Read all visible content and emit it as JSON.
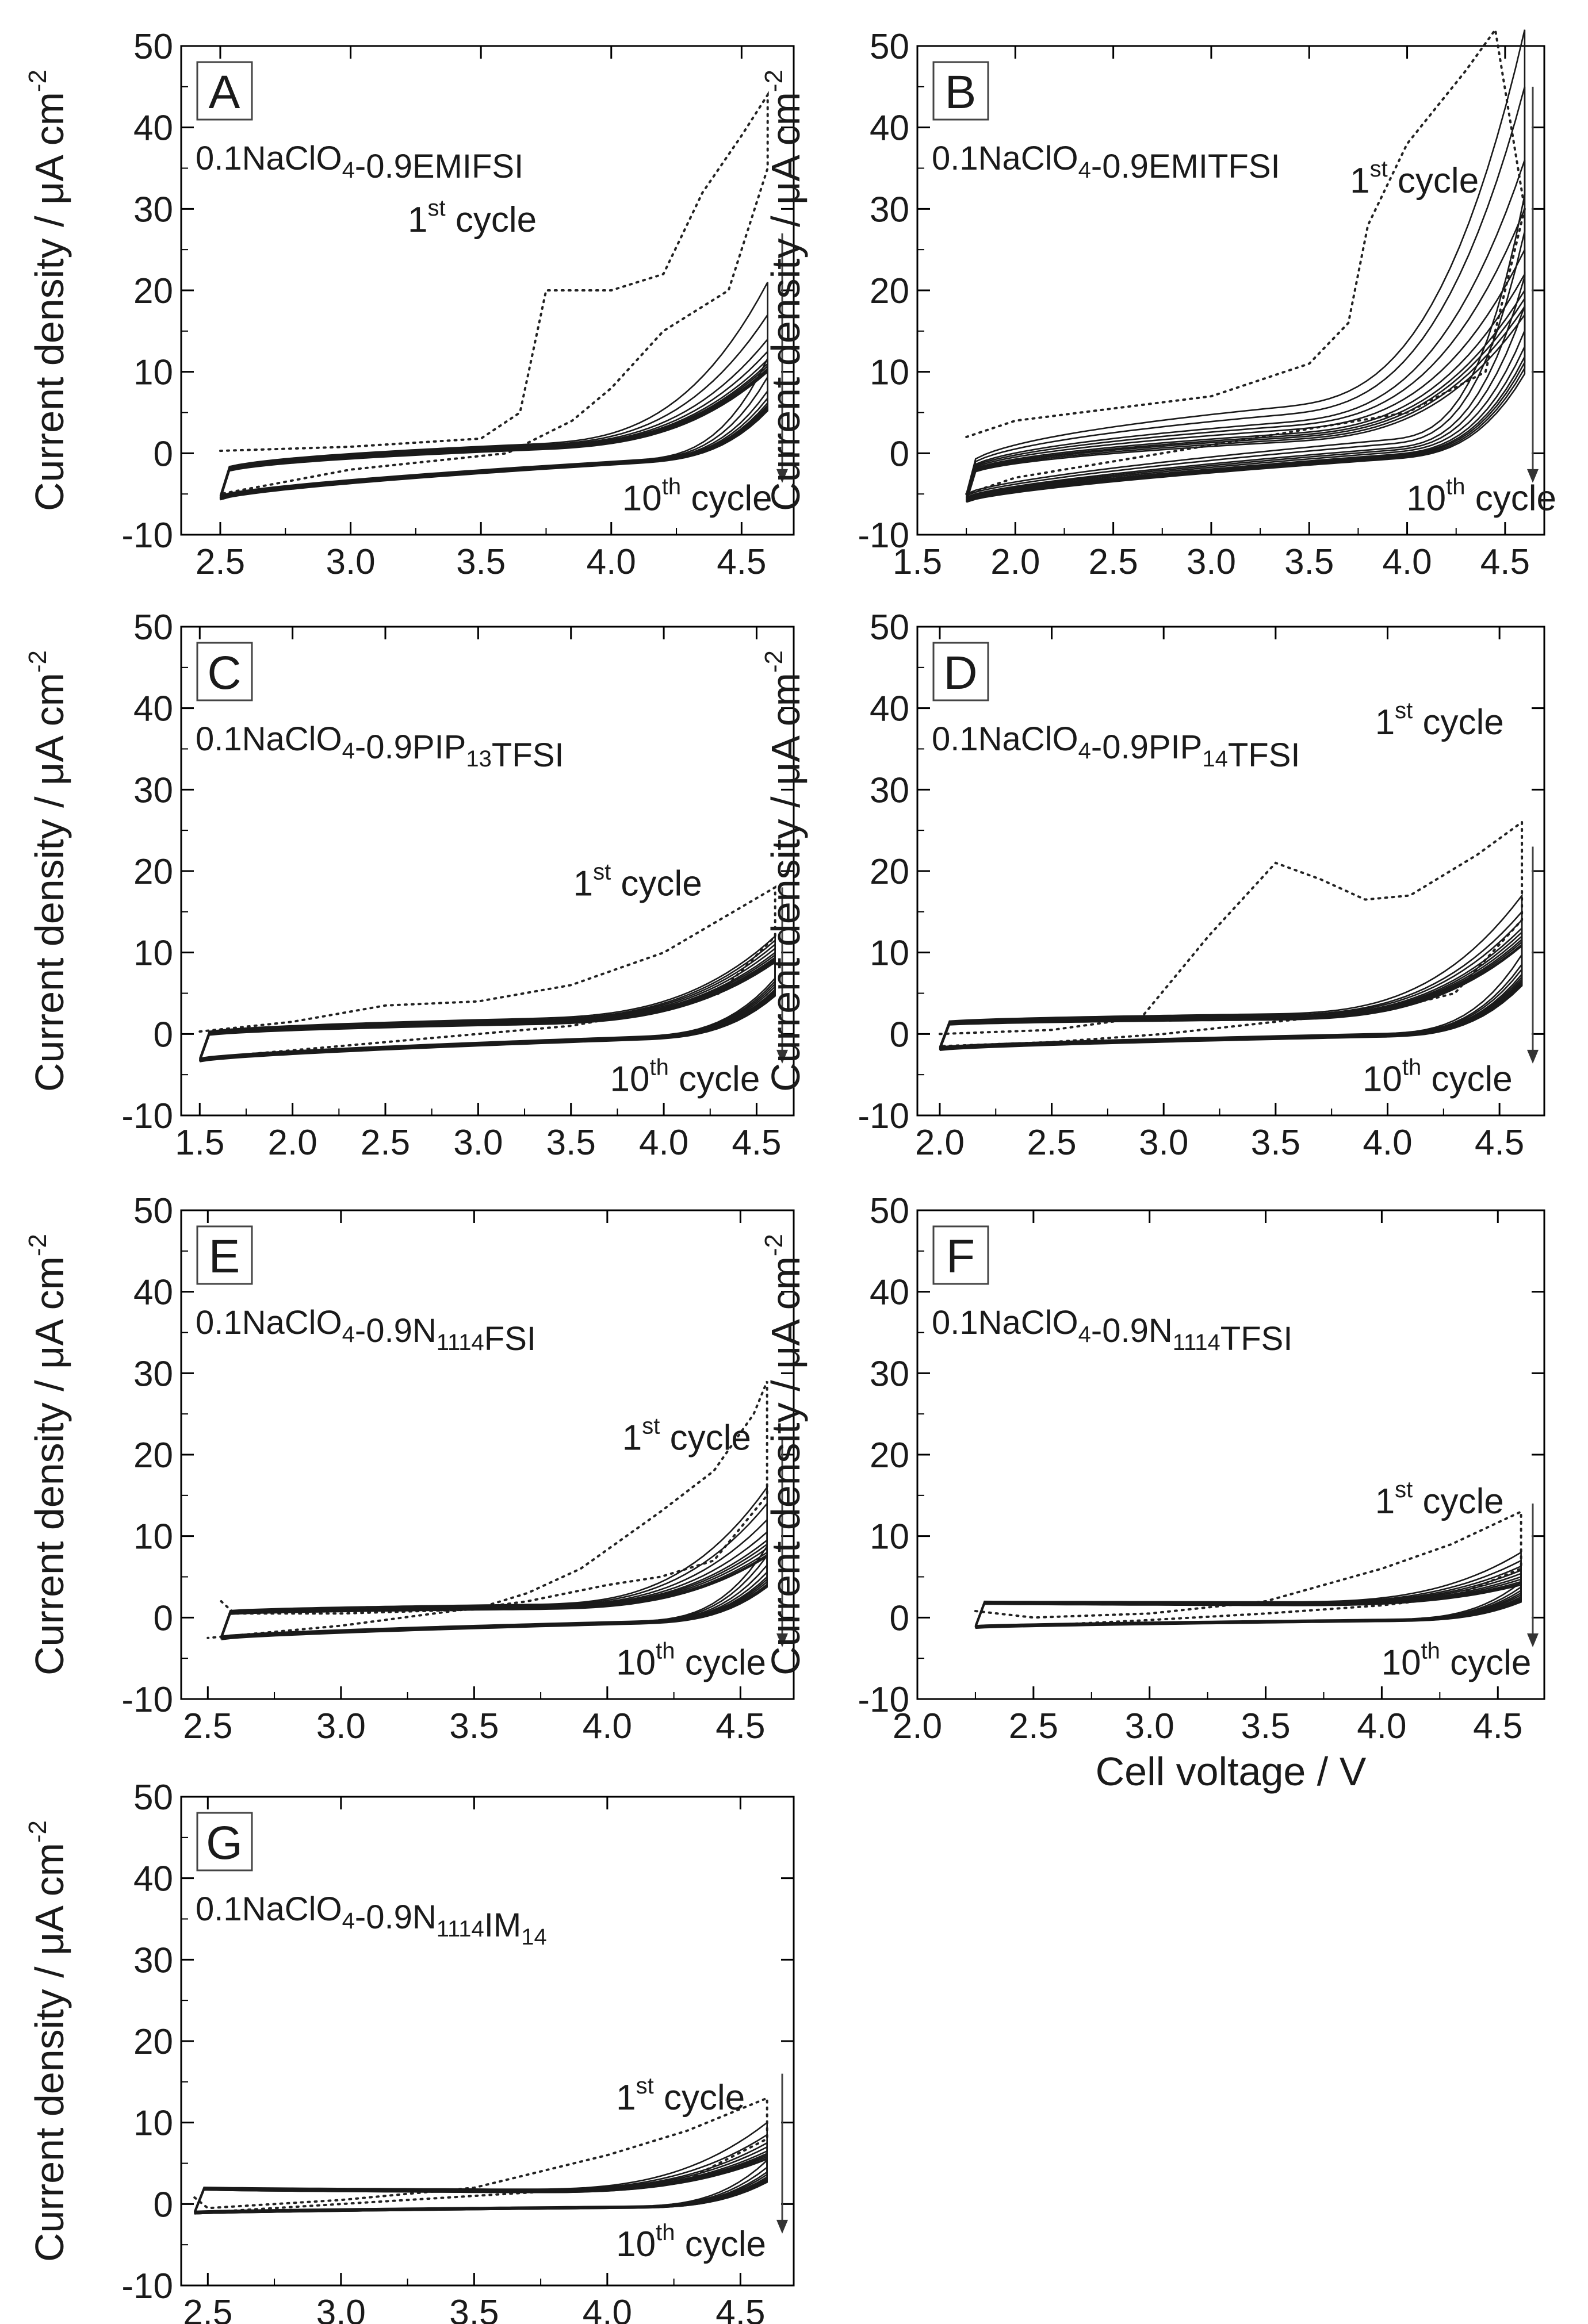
{
  "figure": {
    "ylabel_main": "Current density / μA cm",
    "ylabel_exp": "-2",
    "xlabel": "Cell voltage / V"
  },
  "chart_data": [
    {
      "id": "A",
      "type": "line",
      "label": "A",
      "electrolyte": {
        "p1": "0.1NaClO",
        "s1": "4",
        "p2": "-0.9EMIFSI",
        "s2": "",
        "p3": ""
      },
      "first_cycle": {
        "base": "1",
        "sup": "st",
        "rest": " cycle"
      },
      "tenth_cycle": {
        "base": "10",
        "sup": "th",
        "rest": " cycle"
      },
      "xlim": [
        2.35,
        4.7
      ],
      "ylim": [
        -10,
        50
      ],
      "xticks": [
        "2.5",
        "3.0",
        "3.5",
        "4.0",
        "4.5"
      ],
      "yticks": [
        "-10",
        "0",
        "10",
        "20",
        "30",
        "40",
        "50"
      ],
      "first_cycle_anodic": [
        [
          2.5,
          0.3
        ],
        [
          3.0,
          0.8
        ],
        [
          3.5,
          1.8
        ],
        [
          3.65,
          5
        ],
        [
          3.75,
          20
        ],
        [
          4.0,
          20
        ],
        [
          4.2,
          22
        ],
        [
          4.35,
          32
        ],
        [
          4.5,
          39
        ],
        [
          4.6,
          44
        ]
      ],
      "first_cycle_cathodic": [
        [
          4.6,
          35
        ],
        [
          4.45,
          20
        ],
        [
          4.2,
          15
        ],
        [
          4.0,
          8
        ],
        [
          3.85,
          4
        ],
        [
          3.6,
          0
        ],
        [
          3.0,
          -2
        ],
        [
          2.5,
          -5
        ]
      ],
      "cycles_anodic_end": [
        21,
        17,
        14,
        12.5,
        11.5,
        11,
        10.7,
        10.4,
        10.2,
        10
      ],
      "cycles_cathodic_start": [
        2,
        1.7,
        1.5,
        1.3,
        1.2,
        1.1,
        1.0,
        0.9,
        0.8,
        0.7
      ],
      "cycles_low_end": [
        -5.2,
        -5.3,
        -5.4,
        -5.4,
        -5.5,
        -5.5,
        -5.6,
        -5.6,
        -5.6,
        -5.7
      ]
    },
    {
      "id": "B",
      "type": "line",
      "label": "B",
      "electrolyte": {
        "p1": "0.1NaClO",
        "s1": "4",
        "p2": "-0.9EMITFSI",
        "s2": "",
        "p3": ""
      },
      "first_cycle": {
        "base": "1",
        "sup": "st",
        "rest": " cycle"
      },
      "tenth_cycle": {
        "base": "10",
        "sup": "th",
        "rest": " cycle"
      },
      "xlim": [
        1.5,
        4.7
      ],
      "ylim": [
        -10,
        50
      ],
      "xticks": [
        "1.5",
        "2.0",
        "2.5",
        "3.0",
        "3.5",
        "4.0",
        "4.5"
      ],
      "yticks": [
        "-10",
        "0",
        "10",
        "20",
        "30",
        "40",
        "50"
      ],
      "first_cycle_anodic": [
        [
          1.75,
          2
        ],
        [
          2.0,
          4
        ],
        [
          2.5,
          5.5
        ],
        [
          3.0,
          7
        ],
        [
          3.5,
          11
        ],
        [
          3.7,
          16
        ],
        [
          3.8,
          28
        ],
        [
          4.0,
          38
        ],
        [
          4.3,
          47
        ],
        [
          4.45,
          52
        ]
      ],
      "first_cycle_cathodic": [
        [
          4.6,
          30
        ],
        [
          4.4,
          10
        ],
        [
          4.0,
          5
        ],
        [
          3.5,
          3
        ],
        [
          3.0,
          1
        ],
        [
          2.5,
          -1
        ],
        [
          2.0,
          -3
        ],
        [
          1.75,
          -5
        ]
      ],
      "cycles_anodic_end": [
        52,
        45,
        36,
        30,
        25,
        22,
        20,
        19,
        18,
        17
      ],
      "cycles_cathodic_start": [
        12,
        10,
        8,
        7,
        6,
        5,
        4.5,
        4,
        3.5,
        3
      ],
      "cycles_low_end": [
        -5.0,
        -5.2,
        -5.4,
        -5.5,
        -5.6,
        -5.7,
        -5.8,
        -5.8,
        -5.9,
        -6.0
      ]
    },
    {
      "id": "C",
      "type": "line",
      "label": "C",
      "electrolyte": {
        "p1": "0.1NaClO",
        "s1": "4",
        "p2": "-0.9PIP",
        "s2": "13",
        "p3": "TFSI"
      },
      "first_cycle": {
        "base": "1",
        "sup": "st",
        "rest": " cycle"
      },
      "tenth_cycle": {
        "base": "10",
        "sup": "th",
        "rest": " cycle"
      },
      "xlim": [
        1.4,
        4.7
      ],
      "ylim": [
        -10,
        50
      ],
      "xticks": [
        "1.5",
        "2.0",
        "2.5",
        "3.0",
        "3.5",
        "4.0",
        "4.5"
      ],
      "yticks": [
        "-10",
        "0",
        "10",
        "20",
        "30",
        "40",
        "50"
      ],
      "first_cycle_anodic": [
        [
          1.5,
          0.3
        ],
        [
          2.0,
          1.5
        ],
        [
          2.5,
          3.5
        ],
        [
          3.0,
          4
        ],
        [
          3.5,
          6
        ],
        [
          4.0,
          10
        ],
        [
          4.3,
          14
        ],
        [
          4.6,
          18
        ]
      ],
      "first_cycle_cathodic": [
        [
          4.6,
          12
        ],
        [
          4.3,
          5
        ],
        [
          4.0,
          3
        ],
        [
          3.5,
          1
        ],
        [
          3.0,
          0
        ],
        [
          2.5,
          -1
        ],
        [
          2.0,
          -2
        ],
        [
          1.5,
          -3
        ]
      ],
      "cycles_anodic_end": [
        12,
        11.5,
        11,
        10.5,
        10,
        9.7,
        9.4,
        9.2,
        9,
        8.8
      ],
      "cycles_cathodic_start": [
        2.5,
        2.2,
        2,
        1.8,
        1.6,
        1.5,
        1.4,
        1.3,
        1.2,
        1.1
      ],
      "cycles_low_end": [
        -3.0,
        -3.1,
        -3.1,
        -3.2,
        -3.2,
        -3.2,
        -3.3,
        -3.3,
        -3.3,
        -3.4
      ]
    },
    {
      "id": "D",
      "type": "line",
      "label": "D",
      "electrolyte": {
        "p1": "0.1NaClO",
        "s1": "4",
        "p2": "-0.9PIP",
        "s2": "14",
        "p3": "TFSI"
      },
      "first_cycle": {
        "base": "1",
        "sup": "st",
        "rest": " cycle"
      },
      "tenth_cycle": {
        "base": "10",
        "sup": "th",
        "rest": " cycle"
      },
      "xlim": [
        1.9,
        4.7
      ],
      "ylim": [
        -10,
        50
      ],
      "xticks": [
        "2.0",
        "2.5",
        "3.0",
        "3.5",
        "4.0",
        "4.5"
      ],
      "yticks": [
        "-10",
        "0",
        "10",
        "20",
        "30",
        "40",
        "50"
      ],
      "first_cycle_anodic": [
        [
          2.0,
          0
        ],
        [
          2.5,
          0.5
        ],
        [
          2.9,
          2
        ],
        [
          3.2,
          12
        ],
        [
          3.5,
          21
        ],
        [
          3.7,
          19
        ],
        [
          3.9,
          16.5
        ],
        [
          4.1,
          17
        ],
        [
          4.4,
          22
        ],
        [
          4.6,
          26
        ]
      ],
      "first_cycle_cathodic": [
        [
          4.6,
          14
        ],
        [
          4.3,
          5
        ],
        [
          4.0,
          3
        ],
        [
          3.5,
          1.5
        ],
        [
          3.0,
          0
        ],
        [
          2.5,
          -1
        ],
        [
          2.0,
          -1.5
        ]
      ],
      "cycles_anodic_end": [
        17,
        15,
        14,
        13,
        12.5,
        12,
        11.6,
        11.3,
        11,
        10.8
      ],
      "cycles_cathodic_start": [
        3,
        2.7,
        2.5,
        2.3,
        2.1,
        2,
        1.9,
        1.8,
        1.7,
        1.6
      ],
      "cycles_low_end": [
        -1.6,
        -1.7,
        -1.7,
        -1.8,
        -1.8,
        -1.8,
        -1.9,
        -1.9,
        -1.9,
        -2.0
      ]
    },
    {
      "id": "E",
      "type": "line",
      "label": "E",
      "electrolyte": {
        "p1": "0.1NaClO",
        "s1": "4",
        "p2": "-0.9N",
        "s2": "1114",
        "p3": "FSI"
      },
      "first_cycle": {
        "base": "1",
        "sup": "st",
        "rest": " cycle"
      },
      "tenth_cycle": {
        "base": "10",
        "sup": "th",
        "rest": " cycle"
      },
      "xlim": [
        2.4,
        4.7
      ],
      "ylim": [
        -10,
        50
      ],
      "xticks": [
        "2.5",
        "3.0",
        "3.5",
        "4.0",
        "4.5"
      ],
      "yticks": [
        "-10",
        "0",
        "10",
        "20",
        "30",
        "40",
        "50"
      ],
      "first_cycle_anodic": [
        [
          2.55,
          2
        ],
        [
          2.6,
          0.5
        ],
        [
          3.0,
          0.5
        ],
        [
          3.5,
          1
        ],
        [
          3.7,
          3
        ],
        [
          3.9,
          6
        ],
        [
          4.2,
          13
        ],
        [
          4.4,
          18
        ],
        [
          4.55,
          25
        ],
        [
          4.6,
          29
        ]
      ],
      "first_cycle_cathodic": [
        [
          4.6,
          15
        ],
        [
          4.4,
          7
        ],
        [
          4.2,
          5
        ],
        [
          4.0,
          4
        ],
        [
          3.7,
          2
        ],
        [
          3.0,
          -1
        ],
        [
          2.5,
          -2.5
        ]
      ],
      "cycles_anodic_end": [
        16,
        14,
        12,
        10.5,
        9.5,
        9,
        8.5,
        8,
        7.7,
        7.5
      ],
      "cycles_cathodic_start": [
        1.5,
        1.3,
        1.1,
        1,
        0.9,
        0.8,
        0.7,
        0.6,
        0.5,
        0.4
      ],
      "cycles_low_end": [
        -2.3,
        -2.4,
        -2.4,
        -2.5,
        -2.5,
        -2.5,
        -2.6,
        -2.6,
        -2.6,
        -2.7
      ]
    },
    {
      "id": "F",
      "type": "line",
      "label": "F",
      "electrolyte": {
        "p1": "0.1NaClO",
        "s1": "4",
        "p2": "-0.9N",
        "s2": "1114",
        "p3": "TFSI"
      },
      "first_cycle": {
        "base": "1",
        "sup": "st",
        "rest": " cycle"
      },
      "tenth_cycle": {
        "base": "10",
        "sup": "th",
        "rest": " cycle"
      },
      "xlim": [
        2.0,
        4.7
      ],
      "ylim": [
        -10,
        50
      ],
      "xticks": [
        "2.0",
        "2.5",
        "3.0",
        "3.5",
        "4.0",
        "4.5"
      ],
      "yticks": [
        "-10",
        "0",
        "10",
        "20",
        "30",
        "40",
        "50"
      ],
      "first_cycle_anodic": [
        [
          2.25,
          0.8
        ],
        [
          2.5,
          0
        ],
        [
          3.0,
          0.5
        ],
        [
          3.5,
          2
        ],
        [
          4.0,
          6
        ],
        [
          4.3,
          9
        ],
        [
          4.6,
          13
        ]
      ],
      "first_cycle_cathodic": [
        [
          4.6,
          6
        ],
        [
          4.3,
          2.5
        ],
        [
          4.0,
          1.5
        ],
        [
          3.5,
          0.5
        ],
        [
          3.0,
          -0.3
        ],
        [
          2.5,
          -1
        ],
        [
          2.25,
          -1.2
        ]
      ],
      "cycles_anodic_end": [
        8,
        7,
        6.3,
        5.8,
        5.4,
        5,
        4.7,
        4.4,
        4.2,
        4
      ],
      "cycles_cathodic_start": [
        1.5,
        1.3,
        1.2,
        1.1,
        1,
        0.9,
        0.8,
        0.8,
        0.7,
        0.7
      ],
      "cycles_low_end": [
        -1.0,
        -1.0,
        -1.1,
        -1.1,
        -1.1,
        -1.2,
        -1.2,
        -1.2,
        -1.2,
        -1.3
      ]
    },
    {
      "id": "G",
      "type": "line",
      "label": "G",
      "electrolyte": {
        "p1": "0.1NaClO",
        "s1": "4",
        "p2": "-0.9N",
        "s2": "1114",
        "p3": "IM",
        "s3": "14"
      },
      "first_cycle": {
        "base": "1",
        "sup": "st",
        "rest": " cycle"
      },
      "tenth_cycle": {
        "base": "10",
        "sup": "th",
        "rest": " cycle"
      },
      "xlim": [
        2.4,
        4.7
      ],
      "ylim": [
        -10,
        50
      ],
      "xticks": [
        "2.5",
        "3.0",
        "3.5",
        "4.0",
        "4.5"
      ],
      "yticks": [
        "-10",
        "0",
        "10",
        "20",
        "30",
        "40",
        "50"
      ],
      "first_cycle_anodic": [
        [
          2.45,
          0.8
        ],
        [
          2.5,
          -0.5
        ],
        [
          3.0,
          0.5
        ],
        [
          3.5,
          2
        ],
        [
          4.0,
          6
        ],
        [
          4.3,
          9
        ],
        [
          4.6,
          13
        ]
      ],
      "first_cycle_cathodic": [
        [
          4.6,
          8
        ],
        [
          4.3,
          3
        ],
        [
          4.0,
          2
        ],
        [
          3.5,
          1
        ],
        [
          3.0,
          0
        ],
        [
          2.5,
          -1
        ]
      ],
      "cycles_anodic_end": [
        10,
        8.5,
        7.5,
        7,
        6.5,
        6.2,
        6,
        5.8,
        5.6,
        5.5
      ],
      "cycles_cathodic_start": [
        1.2,
        1.1,
        1,
        0.9,
        0.8,
        0.7,
        0.6,
        0.6,
        0.5,
        0.5
      ],
      "cycles_low_end": [
        -0.9,
        -1.0,
        -1.0,
        -1.0,
        -1.1,
        -1.1,
        -1.1,
        -1.2,
        -1.2,
        -1.2
      ]
    }
  ]
}
